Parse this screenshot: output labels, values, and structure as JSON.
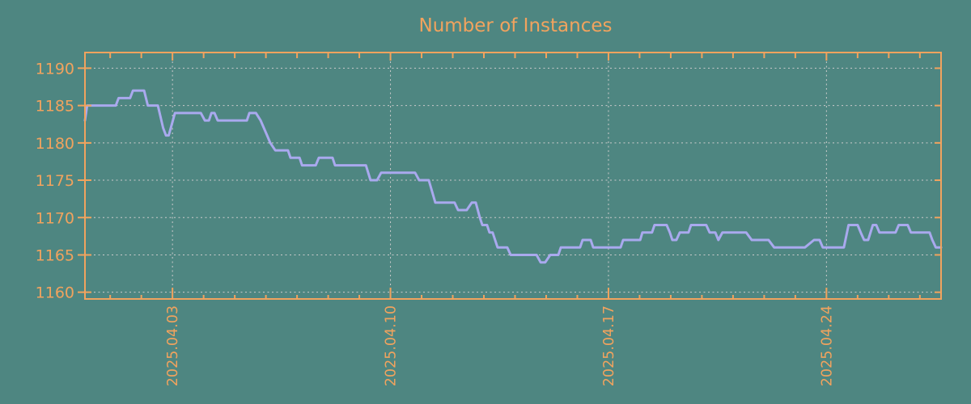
{
  "title": "Number of Instances",
  "colors": {
    "background": "#4e8681",
    "accent": "#f1a35e",
    "line": "#a9a9ee",
    "grid": "#cbcbcb"
  },
  "chart_data": {
    "type": "line",
    "title": "Number of Instances",
    "xlabel": "",
    "ylabel": "",
    "grid": "dotted",
    "legend": "none",
    "x_axis": {
      "unit": "date (day offset, 3 = 2025.04.03)",
      "range_days": [
        0.19,
        27.68
      ],
      "major_ticks": [
        {
          "day": 3,
          "label": "2025.04.03"
        },
        {
          "day": 10,
          "label": "2025.04.10"
        },
        {
          "day": 17,
          "label": "2025.04.17"
        },
        {
          "day": 24,
          "label": "2025.04.24"
        }
      ],
      "minor_tick_days": [
        1,
        2,
        3,
        4,
        5,
        6,
        7,
        8,
        9,
        10,
        11,
        12,
        13,
        14,
        15,
        16,
        17,
        18,
        19,
        20,
        21,
        22,
        23,
        24,
        25,
        26,
        27
      ]
    },
    "y_axis": {
      "ticks": [
        1160,
        1165,
        1170,
        1175,
        1180,
        1185,
        1190
      ],
      "range": [
        1159.1,
        1192.1
      ]
    },
    "series": [
      {
        "name": "Number of Instances",
        "points": [
          [
            0.19,
            1183
          ],
          [
            0.26,
            1185
          ],
          [
            1.18,
            1185
          ],
          [
            1.27,
            1186
          ],
          [
            1.64,
            1186
          ],
          [
            1.73,
            1187
          ],
          [
            2.09,
            1187
          ],
          [
            2.21,
            1185
          ],
          [
            2.53,
            1185
          ],
          [
            2.7,
            1182
          ],
          [
            2.79,
            1181
          ],
          [
            2.88,
            1181
          ],
          [
            3.08,
            1184
          ],
          [
            3.91,
            1184
          ],
          [
            4.04,
            1183
          ],
          [
            4.17,
            1183
          ],
          [
            4.25,
            1184
          ],
          [
            4.35,
            1184
          ],
          [
            4.45,
            1183
          ],
          [
            5.39,
            1183
          ],
          [
            5.47,
            1184
          ],
          [
            5.68,
            1184
          ],
          [
            5.83,
            1183
          ],
          [
            6.04,
            1181
          ],
          [
            6.14,
            1180
          ],
          [
            6.3,
            1179
          ],
          [
            6.71,
            1179
          ],
          [
            6.79,
            1178
          ],
          [
            7.08,
            1178
          ],
          [
            7.16,
            1177
          ],
          [
            7.6,
            1177
          ],
          [
            7.7,
            1178
          ],
          [
            8.14,
            1178
          ],
          [
            8.22,
            1177
          ],
          [
            9.21,
            1177
          ],
          [
            9.36,
            1175
          ],
          [
            9.57,
            1175
          ],
          [
            9.7,
            1176
          ],
          [
            10.79,
            1176
          ],
          [
            10.92,
            1175
          ],
          [
            11.23,
            1175
          ],
          [
            11.44,
            1172
          ],
          [
            12.06,
            1172
          ],
          [
            12.17,
            1171
          ],
          [
            12.45,
            1171
          ],
          [
            12.61,
            1172
          ],
          [
            12.74,
            1172
          ],
          [
            12.87,
            1170
          ],
          [
            12.95,
            1169
          ],
          [
            13.1,
            1169
          ],
          [
            13.18,
            1168
          ],
          [
            13.28,
            1168
          ],
          [
            13.44,
            1166
          ],
          [
            13.75,
            1166
          ],
          [
            13.86,
            1165
          ],
          [
            14.69,
            1165
          ],
          [
            14.82,
            1164
          ],
          [
            14.97,
            1164
          ],
          [
            15.13,
            1165
          ],
          [
            15.39,
            1165
          ],
          [
            15.47,
            1166
          ],
          [
            16.09,
            1166
          ],
          [
            16.17,
            1167
          ],
          [
            16.43,
            1167
          ],
          [
            16.51,
            1166
          ],
          [
            17.39,
            1166
          ],
          [
            17.47,
            1167
          ],
          [
            18.02,
            1167
          ],
          [
            18.09,
            1168
          ],
          [
            18.4,
            1168
          ],
          [
            18.48,
            1169
          ],
          [
            18.87,
            1169
          ],
          [
            18.97,
            1168
          ],
          [
            19.05,
            1167
          ],
          [
            19.18,
            1167
          ],
          [
            19.29,
            1168
          ],
          [
            19.57,
            1168
          ],
          [
            19.65,
            1169
          ],
          [
            20.14,
            1169
          ],
          [
            20.25,
            1168
          ],
          [
            20.43,
            1168
          ],
          [
            20.53,
            1167
          ],
          [
            20.66,
            1168
          ],
          [
            21.42,
            1168
          ],
          [
            21.6,
            1167
          ],
          [
            22.14,
            1167
          ],
          [
            22.32,
            1166
          ],
          [
            23.31,
            1166
          ],
          [
            23.6,
            1167
          ],
          [
            23.78,
            1167
          ],
          [
            23.88,
            1166
          ],
          [
            24.56,
            1166
          ],
          [
            24.71,
            1169
          ],
          [
            25.0,
            1169
          ],
          [
            25.1,
            1168
          ],
          [
            25.21,
            1167
          ],
          [
            25.34,
            1167
          ],
          [
            25.49,
            1169
          ],
          [
            25.6,
            1169
          ],
          [
            25.7,
            1168
          ],
          [
            26.22,
            1168
          ],
          [
            26.32,
            1169
          ],
          [
            26.61,
            1169
          ],
          [
            26.71,
            1168
          ],
          [
            27.31,
            1168
          ],
          [
            27.4,
            1167
          ],
          [
            27.51,
            1166
          ],
          [
            27.68,
            1166
          ]
        ]
      }
    ]
  }
}
